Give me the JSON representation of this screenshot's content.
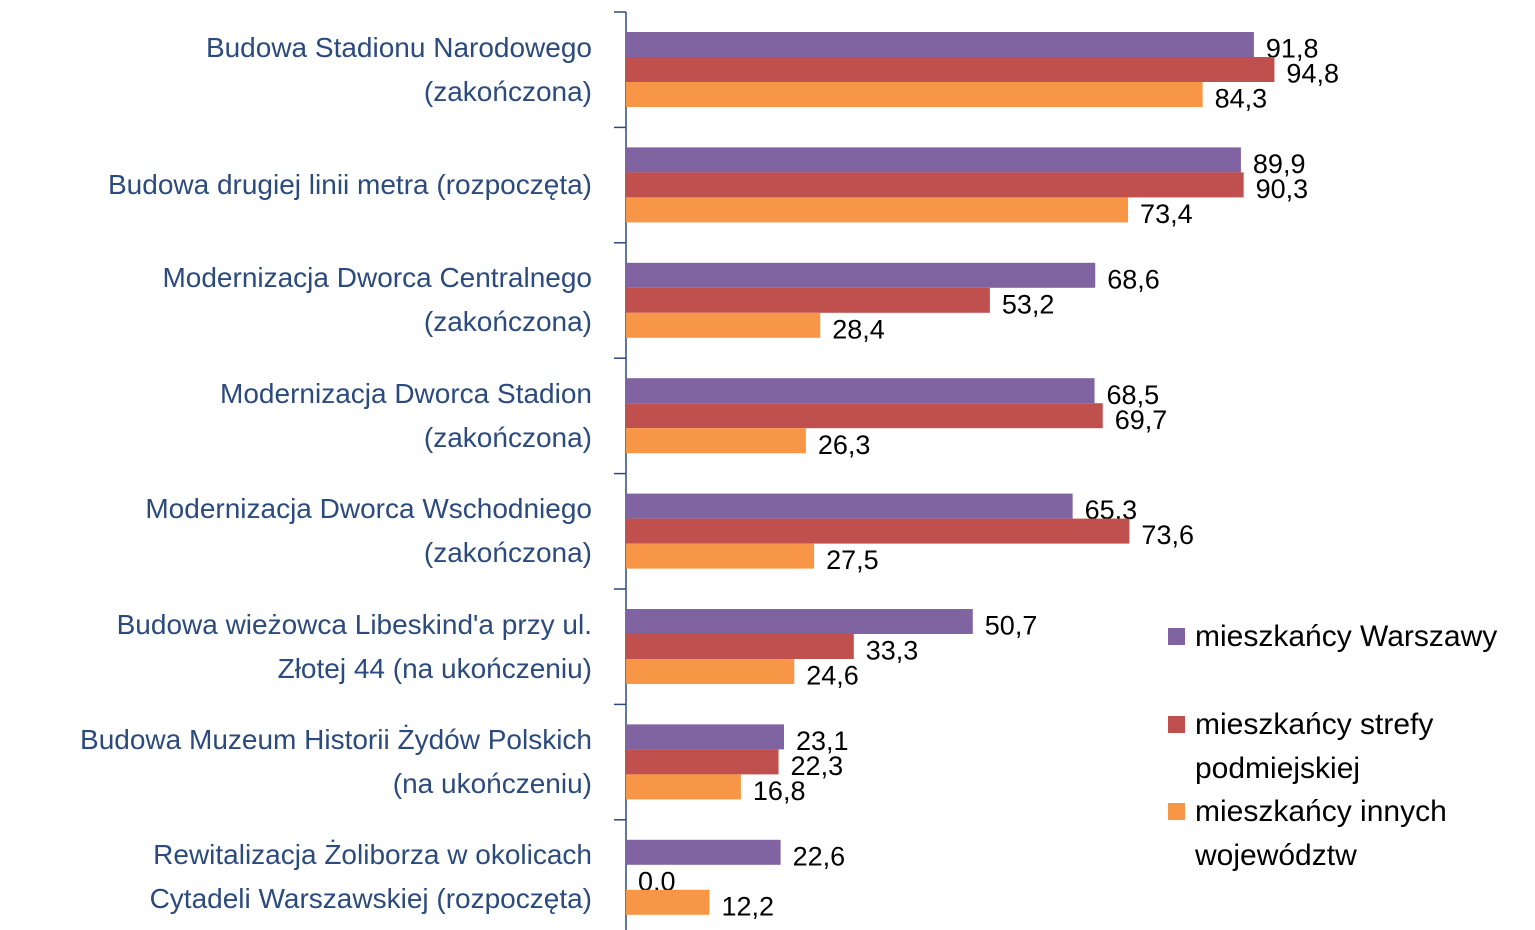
{
  "chart_data": {
    "type": "bar",
    "orientation": "horizontal",
    "categories": [
      "Budowa Stadionu Narodowego\n(zakończona)",
      "Budowa drugiej linii metra (rozpoczęta)",
      "Modernizacja Dworca Centralnego\n(zakończona)",
      "Modernizacja Dworca Stadion\n(zakończona)",
      "Modernizacja Dworca Wschodniego\n(zakończona)",
      "Budowa wieżowca Libeskind'a przy ul.\nZłotej 44 (na ukończeniu)",
      "Budowa Muzeum Historii Żydów Polskich\n(na ukończeniu)",
      "Rewitalizacja Żoliborza w okolicach\nCytadeli Warszawskiej (rozpoczęta)"
    ],
    "series": [
      {
        "name": "mieszkańcy Warszawy",
        "color": "#8064a2",
        "values": [
          91.8,
          89.9,
          68.6,
          68.5,
          65.3,
          50.7,
          23.1,
          22.6
        ],
        "value_labels": [
          "91,8",
          "89,9",
          "68,6",
          "68,5",
          "65,3",
          "50,7",
          "23,1",
          "22,6"
        ]
      },
      {
        "name": "mieszkańcy strefy podmiejskiej",
        "color": "#c0504d",
        "values": [
          94.8,
          90.3,
          53.2,
          69.7,
          73.6,
          33.3,
          22.3,
          0.0
        ],
        "value_labels": [
          "94,8",
          "90,3",
          "53,2",
          "69,7",
          "73,6",
          "33,3",
          "22,3",
          "0,0"
        ]
      },
      {
        "name": "mieszkańcy innych województw",
        "color": "#f79646",
        "values": [
          84.3,
          73.4,
          28.4,
          26.3,
          27.5,
          24.6,
          16.8,
          12.2
        ],
        "value_labels": [
          "84,3",
          "73,4",
          "28,4",
          "26,3",
          "27,5",
          "24,6",
          "16,8",
          "12,2"
        ]
      }
    ],
    "xlim": [
      0,
      100
    ],
    "legend": "right"
  }
}
